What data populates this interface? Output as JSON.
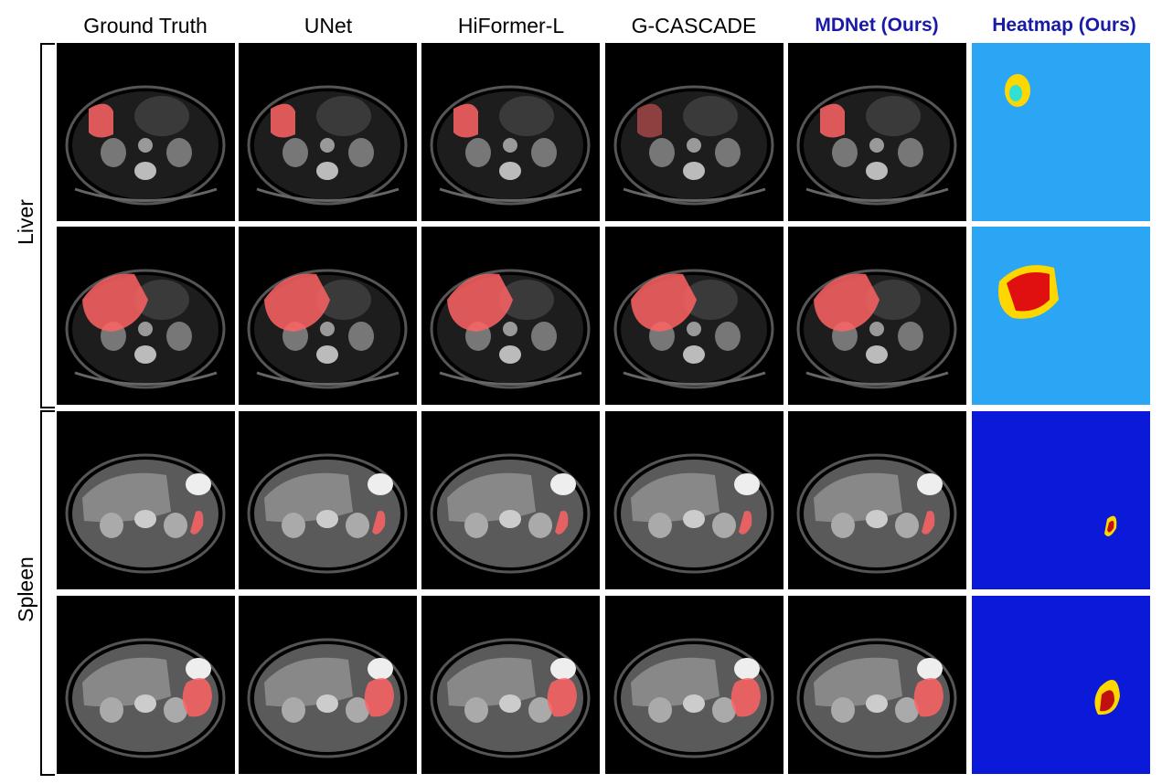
{
  "columns": [
    "Ground Truth",
    "UNet",
    "HiFormer-L",
    "G-CASCADE",
    "MDNet (Ours)",
    "Heatmap (Ours)"
  ],
  "row_groups": [
    "Liver",
    "Spleen"
  ],
  "colors": {
    "ours_header": "#1a1aa8",
    "overlay": "#ff6464",
    "heatmap_liver_bg": "#2aa6f4",
    "heatmap_spleen_bg": "#0b1ad8"
  }
}
